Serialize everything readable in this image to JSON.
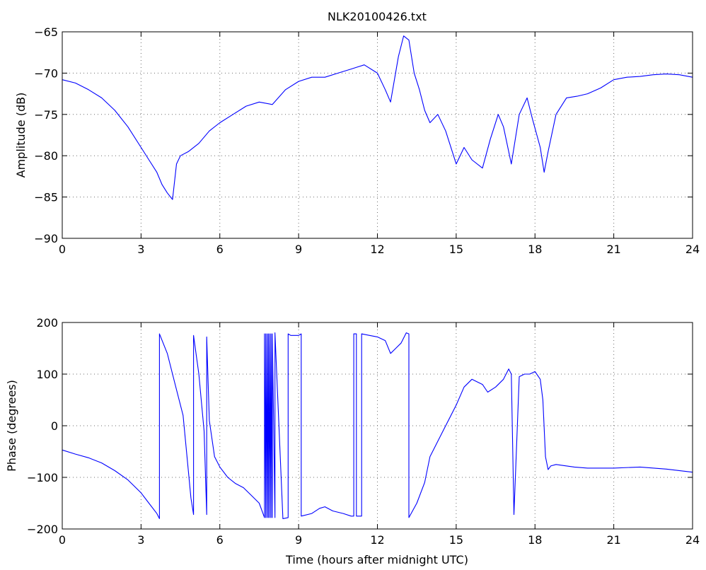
{
  "chart_data": [
    {
      "type": "line",
      "title": "NLK20100426.txt",
      "xlabel": "",
      "ylabel": "Amplitude (dB)",
      "xlim": [
        0,
        24
      ],
      "ylim": [
        -90,
        -65
      ],
      "xticks": [
        0,
        3,
        6,
        9,
        12,
        15,
        18,
        21,
        24
      ],
      "yticks": [
        -90,
        -85,
        -80,
        -75,
        -70,
        -65
      ],
      "grid": true,
      "line_color": "#0000ff",
      "series": [
        {
          "x": [
            0,
            0.5,
            1,
            1.5,
            2,
            2.5,
            3,
            3.3,
            3.6,
            3.8,
            4.0,
            4.2,
            4.35,
            4.5,
            4.8,
            5.2,
            5.6,
            6.0,
            6.5,
            7.0,
            7.5,
            8.0,
            8.5,
            9.0,
            9.5,
            10.0,
            10.5,
            11.0,
            11.5,
            12.0,
            12.3,
            12.5,
            12.8,
            13.0,
            13.2,
            13.4,
            13.6,
            13.8,
            14.0,
            14.3,
            14.6,
            15.0,
            15.3,
            15.6,
            16.0,
            16.3,
            16.6,
            16.8,
            17.1,
            17.4,
            17.7,
            17.9,
            18.2,
            18.35,
            18.5,
            18.8,
            19.2,
            19.6,
            20.0,
            20.5,
            21.0,
            21.5,
            22.0,
            22.5,
            23.0,
            23.5,
            24.0
          ],
          "y": [
            -70.8,
            -71.2,
            -72.0,
            -73.0,
            -74.5,
            -76.5,
            -79.0,
            -80.5,
            -82.0,
            -83.5,
            -84.5,
            -85.3,
            -81.0,
            -80.0,
            -79.5,
            -78.5,
            -77.0,
            -76.0,
            -75.0,
            -74.0,
            -73.5,
            -73.8,
            -72.0,
            -71.0,
            -70.5,
            -70.5,
            -70.0,
            -69.5,
            -69.0,
            -70.0,
            -72.0,
            -73.5,
            -68.0,
            -65.5,
            -66.0,
            -70.0,
            -72.0,
            -74.5,
            -76.0,
            -75.0,
            -77.0,
            -81.0,
            -79.0,
            -80.5,
            -81.5,
            -78.0,
            -75.0,
            -76.5,
            -81.0,
            -75.0,
            -73.0,
            -75.5,
            -79.0,
            -82.0,
            -79.5,
            -75.0,
            -73.0,
            -72.8,
            -72.5,
            -71.8,
            -70.8,
            -70.5,
            -70.4,
            -70.2,
            -70.1,
            -70.2,
            -70.5
          ]
        }
      ]
    },
    {
      "type": "line",
      "title": "",
      "xlabel": "Time (hours after midnight UTC)",
      "ylabel": "Phase (degrees)",
      "xlim": [
        0,
        24
      ],
      "ylim": [
        -200,
        200
      ],
      "xticks": [
        0,
        3,
        6,
        9,
        12,
        15,
        18,
        21,
        24
      ],
      "yticks": [
        -200,
        -100,
        0,
        100,
        200
      ],
      "grid": true,
      "line_color": "#0000ff",
      "series": [
        {
          "x": [
            0,
            0.5,
            1,
            1.5,
            2,
            2.5,
            3,
            3.3,
            3.6,
            3.7,
            3.7,
            4.0,
            4.3,
            4.6,
            4.9,
            5.0,
            5.0,
            5.2,
            5.4,
            5.5,
            5.5,
            5.6,
            5.8,
            6.0,
            6.3,
            6.6,
            6.9,
            7.2,
            7.5,
            7.7,
            7.7,
            7.75,
            7.75,
            7.8,
            7.8,
            7.85,
            7.85,
            7.9,
            7.9,
            7.95,
            7.95,
            8.0,
            8.0,
            8.1,
            8.1,
            8.4,
            8.6,
            8.6,
            8.7,
            9.0,
            9.1,
            9.1,
            9.5,
            9.8,
            10.0,
            10.3,
            10.7,
            11.0,
            11.1,
            11.1,
            11.2,
            11.2,
            11.4,
            11.4,
            11.7,
            12.0,
            12.3,
            12.5,
            12.7,
            12.9,
            13.1,
            13.2,
            13.2,
            13.5,
            13.8,
            14.0,
            14.5,
            15.0,
            15.3,
            15.6,
            15.8,
            16.0,
            16.2,
            16.5,
            16.8,
            17.0,
            17.1,
            17.1,
            17.2,
            17.4,
            17.6,
            17.8,
            18.0,
            18.2,
            18.3,
            18.4,
            18.5,
            18.6,
            18.8,
            19.5,
            20.0,
            21.0,
            22.0,
            23.0,
            24.0
          ],
          "y": [
            -47,
            -55,
            -62,
            -72,
            -87,
            -105,
            -130,
            -150,
            -170,
            -180,
            178,
            140,
            80,
            20,
            -140,
            -172,
            175,
            100,
            -10,
            -172,
            172,
            10,
            -60,
            -80,
            -100,
            -112,
            -120,
            -135,
            -150,
            -178,
            178,
            -178,
            178,
            -178,
            178,
            -178,
            178,
            -178,
            178,
            -178,
            178,
            -178,
            178,
            -178,
            180,
            -180,
            -178,
            178,
            175,
            175,
            178,
            -175,
            -170,
            -160,
            -157,
            -165,
            -170,
            -175,
            -175,
            178,
            178,
            -175,
            -175,
            178,
            175,
            172,
            165,
            140,
            150,
            160,
            180,
            178,
            -178,
            -150,
            -110,
            -60,
            -10,
            40,
            75,
            90,
            85,
            80,
            65,
            75,
            90,
            110,
            100,
            100,
            -172,
            95,
            100,
            100,
            105,
            90,
            50,
            -60,
            -85,
            -78,
            -75,
            -80,
            -82,
            -82,
            -80,
            -84,
            -90
          ]
        }
      ]
    }
  ]
}
